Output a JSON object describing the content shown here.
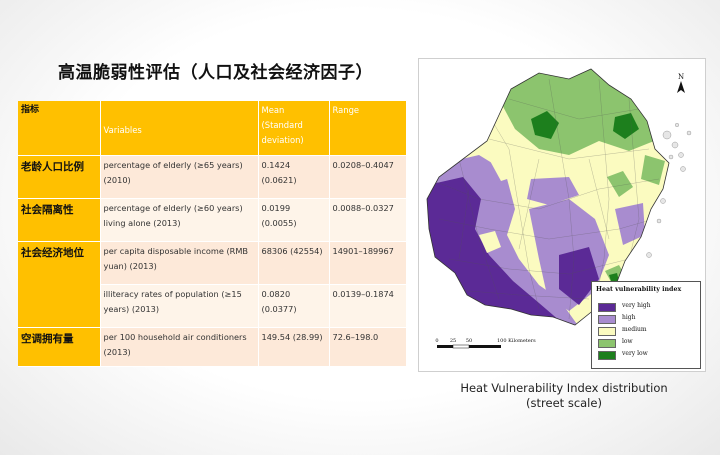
{
  "slide": {
    "title": "高温脆弱性评估（人口及社会经济因子）"
  },
  "table": {
    "headers": {
      "factor": "指标",
      "variable": "Variables",
      "mean": "Mean (Standard deviation)",
      "range": "Range"
    },
    "rows": [
      {
        "factor": "老龄人口比例",
        "variable": "percentage of elderly (≥65 years) (2010)",
        "mean": "0.1424 (0.0621)",
        "range": "0.0208–0.4047"
      },
      {
        "factor": "社会隔离性",
        "variable": "percentage of elderly (≥60 years) living alone (2013)",
        "mean": "0.0199 (0.0055)",
        "range": "0.0088–0.0327"
      },
      {
        "factor": "社会经济地位",
        "variable": "per capita disposable income (RMB yuan) (2013)",
        "mean": "68306 (42554)",
        "range": "14901–189967"
      },
      {
        "factor": "",
        "variable": "illiteracy rates of population (≥15 years) (2013)",
        "mean": "0.0820 (0.0377)",
        "range": "0.0139–0.1874"
      },
      {
        "factor": "空调拥有量",
        "variable": "per 100 household air conditioners (2013)",
        "mean": "149.54 (28.99)",
        "range": "72.6–198.0"
      }
    ],
    "colors": {
      "header": "#ffc000",
      "row_a": "#fde9d9",
      "row_b": "#fef4e9"
    }
  },
  "map": {
    "north_label": "N",
    "scale_ticks": [
      "0",
      "25",
      "50",
      "100 Kilometers"
    ],
    "legend": {
      "title": "Heat vulnerability index",
      "items": [
        {
          "label": "very high",
          "color": "#5b2a96"
        },
        {
          "label": "high",
          "color": "#a88ccf"
        },
        {
          "label": "medium",
          "color": "#fbfbc0"
        },
        {
          "label": "low",
          "color": "#8cc46e"
        },
        {
          "label": "very low",
          "color": "#1d7f1d"
        }
      ]
    },
    "caption_line1": "Heat Vulnerability Index distribution",
    "caption_line2": "(street scale)"
  }
}
